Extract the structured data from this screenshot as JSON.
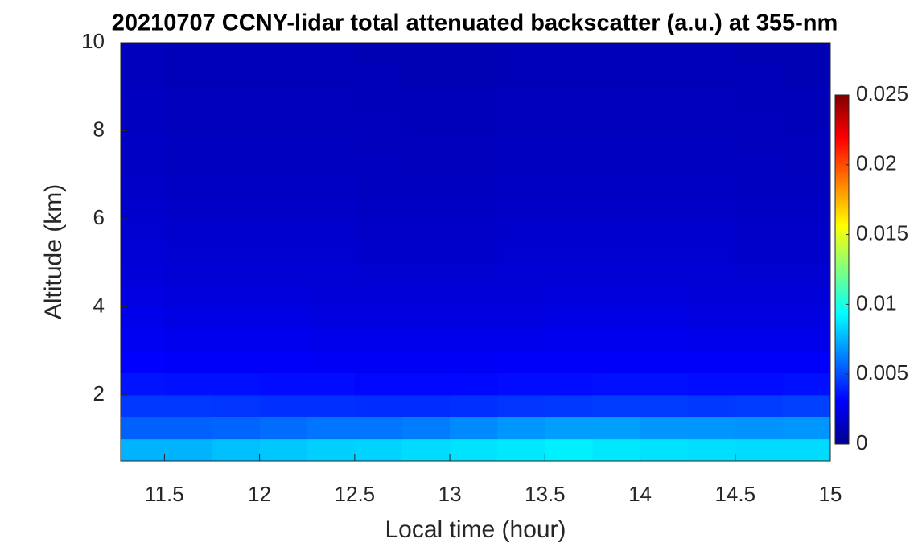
{
  "chart_data": {
    "type": "heatmap",
    "title": "20210707 CCNY-lidar total attenuated backscatter (a.u.) at 355-nm",
    "xlabel": "Local time (hour)",
    "ylabel": "Altitude (km)",
    "x": [
      11.375,
      11.625,
      11.875,
      12.125,
      12.375,
      12.625,
      12.875,
      13.125,
      13.375,
      13.625,
      13.875,
      14.125,
      14.375,
      14.625,
      14.875
    ],
    "y": [
      0.75,
      1.25,
      1.75,
      2.25,
      2.75,
      3.25,
      3.75,
      4.25,
      4.75,
      5.25,
      5.75,
      6.25,
      6.75,
      7.25,
      7.75,
      8.25,
      8.75,
      9.25,
      9.75
    ],
    "values": [
      [
        0.0075,
        0.0075,
        0.0078,
        0.008,
        0.0082,
        0.0083,
        0.0085,
        0.0087,
        0.0088,
        0.009,
        0.0088,
        0.0087,
        0.0086,
        0.0085,
        0.0085
      ],
      [
        0.0055,
        0.0055,
        0.0056,
        0.0058,
        0.006,
        0.006,
        0.0062,
        0.0065,
        0.0068,
        0.007,
        0.007,
        0.0068,
        0.0068,
        0.0067,
        0.0068
      ],
      [
        0.0045,
        0.0045,
        0.0044,
        0.0043,
        0.0043,
        0.0042,
        0.0042,
        0.0043,
        0.0044,
        0.0045,
        0.0046,
        0.0046,
        0.0045,
        0.0046,
        0.0047
      ],
      [
        0.0036,
        0.0035,
        0.0035,
        0.0034,
        0.0034,
        0.0033,
        0.0033,
        0.0033,
        0.0034,
        0.0034,
        0.0035,
        0.0035,
        0.0034,
        0.0034,
        0.0035
      ],
      [
        0.0031,
        0.003,
        0.003,
        0.003,
        0.0029,
        0.0029,
        0.0029,
        0.0029,
        0.003,
        0.003,
        0.003,
        0.003,
        0.003,
        0.003,
        0.003
      ],
      [
        0.0028,
        0.0027,
        0.0027,
        0.0027,
        0.0026,
        0.0026,
        0.0026,
        0.0026,
        0.0026,
        0.0027,
        0.0027,
        0.0027,
        0.0026,
        0.0026,
        0.0026
      ],
      [
        0.0026,
        0.0025,
        0.0025,
        0.0025,
        0.0024,
        0.0024,
        0.0024,
        0.0024,
        0.0024,
        0.0025,
        0.0025,
        0.0025,
        0.0024,
        0.0024,
        0.0024
      ],
      [
        0.0024,
        0.0023,
        0.0023,
        0.0023,
        0.0022,
        0.0022,
        0.0022,
        0.0022,
        0.0022,
        0.0023,
        0.0023,
        0.0023,
        0.0022,
        0.0022,
        0.0022
      ],
      [
        0.0022,
        0.0021,
        0.0021,
        0.0021,
        0.0021,
        0.002,
        0.002,
        0.002,
        0.0021,
        0.0021,
        0.0021,
        0.0021,
        0.0021,
        0.002,
        0.002
      ],
      [
        0.0021,
        0.002,
        0.002,
        0.002,
        0.002,
        0.0019,
        0.0019,
        0.0019,
        0.002,
        0.002,
        0.002,
        0.002,
        0.002,
        0.0019,
        0.0019
      ],
      [
        0.002,
        0.0019,
        0.0019,
        0.0019,
        0.0019,
        0.0018,
        0.0018,
        0.0018,
        0.0019,
        0.0019,
        0.0019,
        0.0019,
        0.0019,
        0.0018,
        0.0018
      ],
      [
        0.0019,
        0.0018,
        0.0018,
        0.0018,
        0.0018,
        0.0017,
        0.0017,
        0.0017,
        0.0018,
        0.0018,
        0.0018,
        0.0018,
        0.0018,
        0.0017,
        0.0017
      ],
      [
        0.0018,
        0.0017,
        0.0017,
        0.0017,
        0.0017,
        0.0016,
        0.0016,
        0.0016,
        0.0017,
        0.0017,
        0.0017,
        0.0017,
        0.0017,
        0.0016,
        0.0016
      ],
      [
        0.0017,
        0.0016,
        0.0016,
        0.0016,
        0.0016,
        0.0016,
        0.0015,
        0.0015,
        0.0016,
        0.0016,
        0.0016,
        0.0016,
        0.0016,
        0.0016,
        0.0015
      ],
      [
        0.0017,
        0.0016,
        0.0016,
        0.0016,
        0.0016,
        0.0015,
        0.0015,
        0.0015,
        0.0016,
        0.0016,
        0.0016,
        0.0016,
        0.0016,
        0.0015,
        0.0015
      ],
      [
        0.0016,
        0.0015,
        0.0015,
        0.0015,
        0.0015,
        0.0015,
        0.0014,
        0.0014,
        0.0015,
        0.0015,
        0.0015,
        0.0015,
        0.0015,
        0.0015,
        0.0014
      ],
      [
        0.0016,
        0.0015,
        0.0015,
        0.0015,
        0.0015,
        0.0014,
        0.0014,
        0.0014,
        0.0015,
        0.0015,
        0.0015,
        0.0015,
        0.0015,
        0.0014,
        0.0014
      ],
      [
        0.0015,
        0.0014,
        0.0014,
        0.0014,
        0.0014,
        0.0014,
        0.0013,
        0.0013,
        0.0014,
        0.0014,
        0.0014,
        0.0014,
        0.0014,
        0.0014,
        0.0013
      ],
      [
        0.0015,
        0.0014,
        0.0014,
        0.0014,
        0.0014,
        0.0013,
        0.0013,
        0.0013,
        0.0014,
        0.0014,
        0.0014,
        0.0014,
        0.0014,
        0.0013,
        0.0013
      ]
    ],
    "xlim": [
      11.27,
      15
    ],
    "xticks": [
      11.5,
      12,
      12.5,
      13,
      13.5,
      14,
      14.5,
      15
    ],
    "ylim": [
      0.5,
      10
    ],
    "yticks": [
      2,
      4,
      6,
      8,
      10
    ],
    "clim": [
      0,
      0.025
    ],
    "cticks": [
      0,
      0.005,
      0.01,
      0.015,
      0.02,
      0.025
    ],
    "colormap": "jet"
  }
}
